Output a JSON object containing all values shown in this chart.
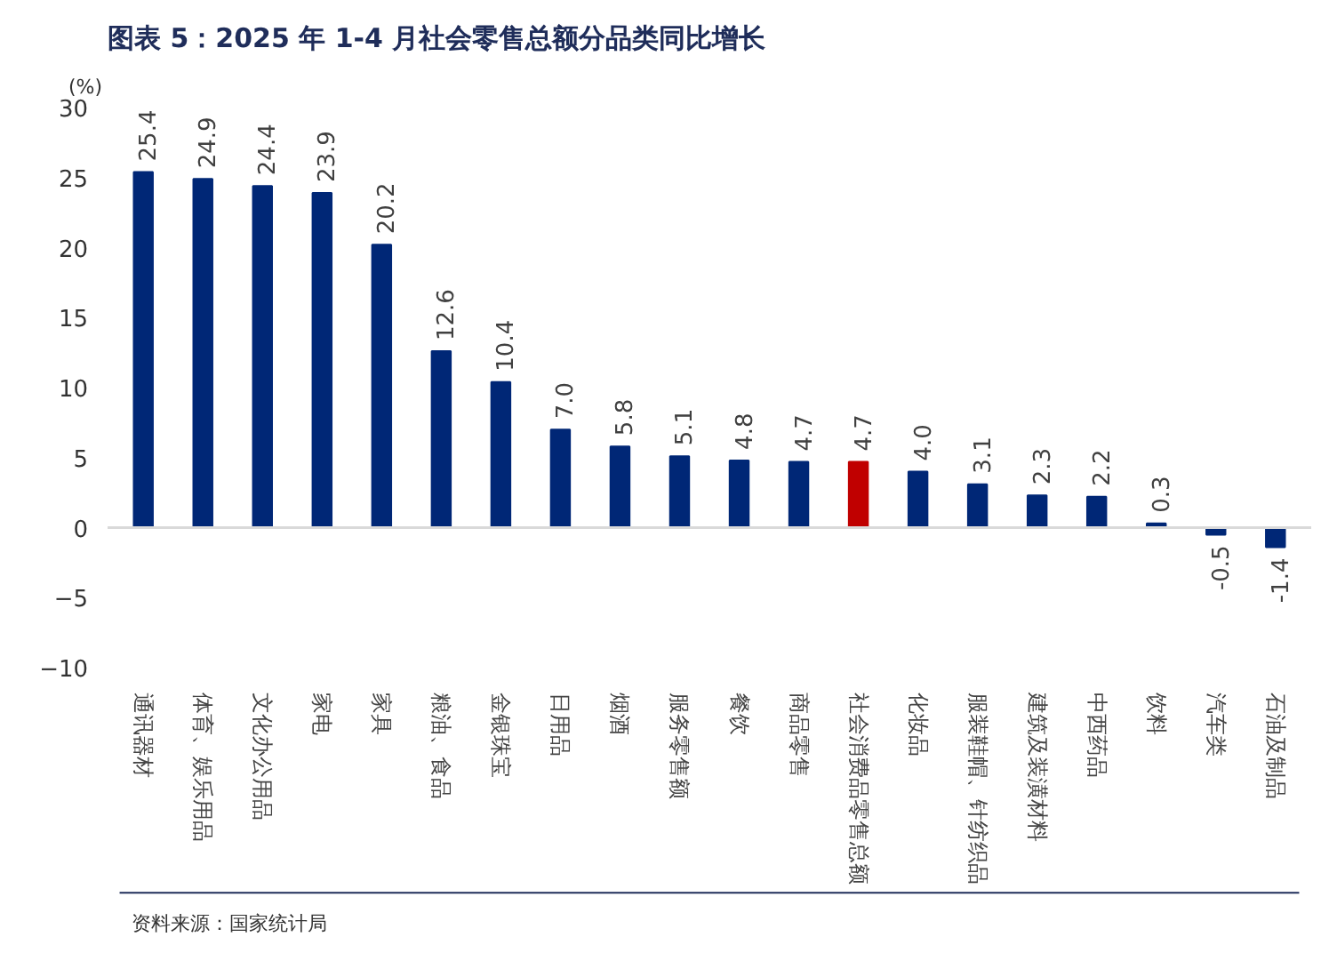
{
  "chart_data": {
    "type": "bar",
    "title": "图表 5：2025 年 1-4 月社会零售总额分品类同比增长",
    "ylabel": "(%)",
    "categories": [
      "通讯器材",
      "体育、娱乐用品",
      "文化办公用品",
      "家电",
      "家具",
      "粮油、食品",
      "金银珠宝",
      "日用品",
      "烟酒",
      "服务零售额",
      "餐饮",
      "商品零售",
      "社会消费品零售总额",
      "化妆品",
      "服装鞋帽、针纺织品",
      "建筑及装潢材料",
      "中西药品",
      "饮料",
      "汽车类",
      "石油及制品"
    ],
    "values": [
      25.4,
      24.9,
      24.4,
      23.9,
      20.2,
      12.6,
      10.4,
      7.0,
      5.8,
      5.1,
      4.8,
      4.7,
      4.7,
      4.0,
      3.1,
      2.3,
      2.2,
      0.3,
      -0.5,
      -1.4
    ],
    "value_labels": [
      "25.4",
      "24.9",
      "24.4",
      "23.9",
      "20.2",
      "12.6",
      "10.4",
      "7.0",
      "5.8",
      "5.1",
      "4.8",
      "4.7",
      "4.7",
      "4.0",
      "3.1",
      "2.3",
      "2.2",
      "0.3",
      "-0.5",
      "-1.4"
    ],
    "colors": [
      "#002776",
      "#002776",
      "#002776",
      "#002776",
      "#002776",
      "#002776",
      "#002776",
      "#002776",
      "#002776",
      "#002776",
      "#002776",
      "#002776",
      "#c00000",
      "#002776",
      "#002776",
      "#002776",
      "#002776",
      "#002776",
      "#002776",
      "#002776"
    ],
    "ylim": [
      -10,
      30
    ],
    "yticks": [
      -10,
      -5,
      0,
      5,
      10,
      15,
      20,
      25,
      30
    ],
    "annotations": [
      "资料来源：国家统计局"
    ]
  }
}
